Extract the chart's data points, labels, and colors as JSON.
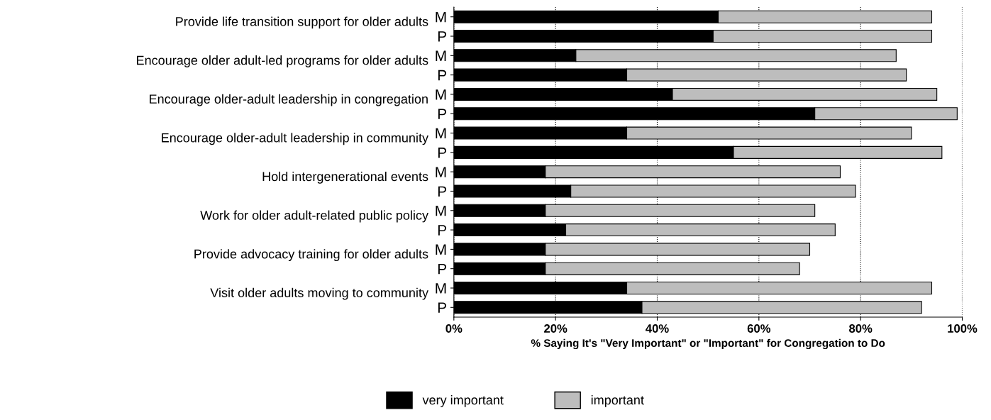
{
  "chart_data": {
    "type": "bar",
    "orientation": "horizontal",
    "stacked": true,
    "categories": [
      "M",
      "P",
      "M",
      "P",
      "M",
      "P",
      "M",
      "P",
      "M",
      "P",
      "M",
      "P",
      "M",
      "P",
      "M",
      "P"
    ],
    "series": [
      {
        "name": "very important",
        "color": "#000000",
        "values": [
          52,
          51,
          24,
          34,
          43,
          71,
          34,
          55,
          18,
          23,
          18,
          22,
          18,
          18,
          34,
          37
        ]
      },
      {
        "name": "important",
        "color": "#bdbdbd",
        "values": [
          42,
          43,
          63,
          55,
          52,
          28,
          56,
          41,
          58,
          56,
          53,
          53,
          52,
          50,
          60,
          55
        ]
      }
    ],
    "annotations": [
      "Provide life transition support for older adults",
      "Encourage older adult-led programs for older adults",
      "Encourage older-adult leadership in congregation",
      "Encourage older-adult leadership in community",
      "Hold intergenerational events",
      "Work for older adult-related public policy",
      "Provide advocacy training for older adults",
      "Visit older adults moving to community"
    ],
    "xlabel": "% Saying It's \"Very Important\" or \"Important\" for Congregation to Do",
    "xlim": [
      0,
      100
    ],
    "xticks": [
      {
        "value": 0,
        "label": "0%"
      },
      {
        "value": 20,
        "label": "20%"
      },
      {
        "value": 40,
        "label": "40%"
      },
      {
        "value": 60,
        "label": "60%"
      },
      {
        "value": 80,
        "label": "80%"
      },
      {
        "value": 100,
        "label": "100%"
      }
    ],
    "grid": "x",
    "legend": "bottom"
  }
}
